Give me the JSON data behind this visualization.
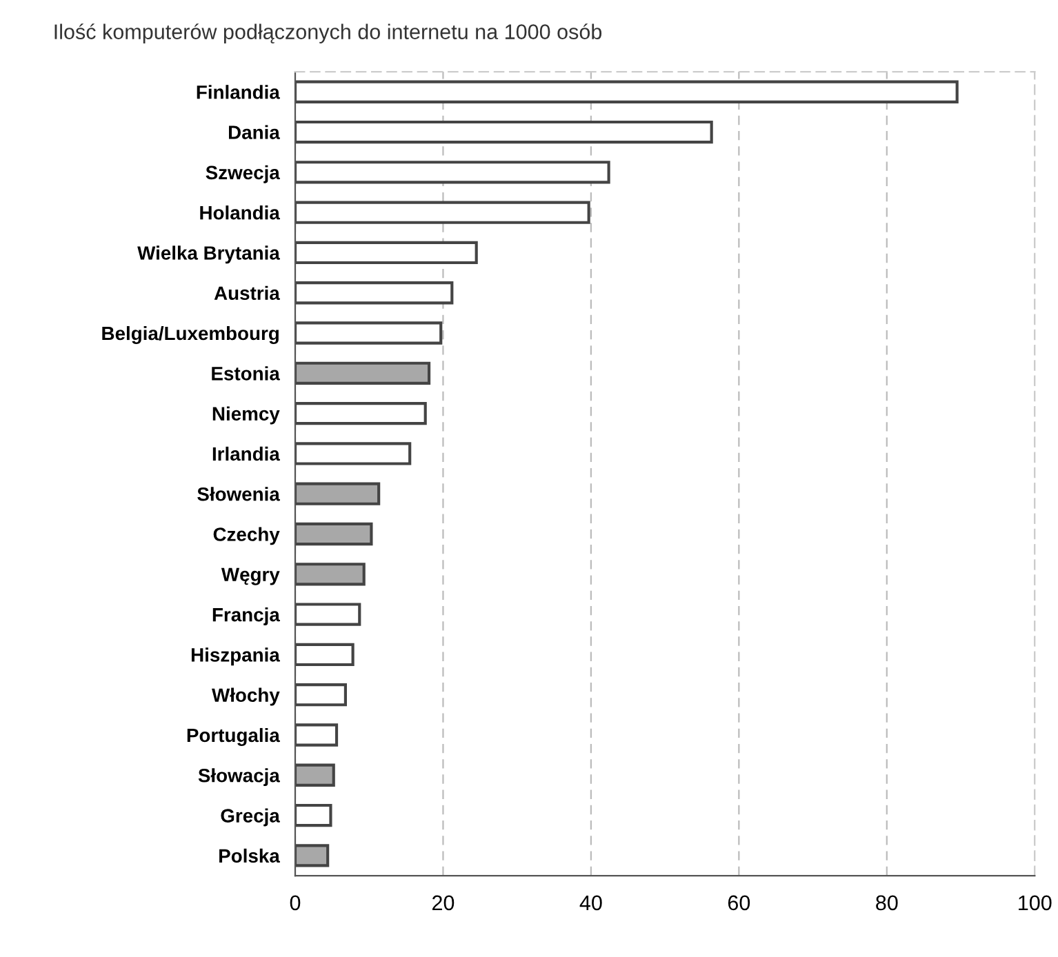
{
  "chart_data": {
    "type": "bar",
    "orientation": "horizontal",
    "title": "Ilość komputerów podłączonych do internetu na 1000 osób",
    "categories": [
      "Finlandia",
      "Dania",
      "Szwecja",
      "Holandia",
      "Wielka Brytania",
      "Austria",
      "Belgia/Luxembourg",
      "Estonia",
      "Niemcy",
      "Irlandia",
      "Słowenia",
      "Czechy",
      "Węgry",
      "Francja",
      "Hiszpania",
      "Włochy",
      "Portugalia",
      "Słowacja",
      "Grecja",
      "Polska"
    ],
    "values": [
      89.5,
      56.3,
      42.4,
      39.7,
      24.5,
      21.2,
      19.7,
      18.1,
      17.6,
      15.5,
      11.3,
      10.3,
      9.3,
      8.7,
      7.8,
      6.8,
      5.6,
      5.2,
      4.8,
      4.4
    ],
    "colors": [
      "#ffffff",
      "#ffffff",
      "#ffffff",
      "#ffffff",
      "#ffffff",
      "#ffffff",
      "#ffffff",
      "#a8a8a8",
      "#ffffff",
      "#ffffff",
      "#a8a8a8",
      "#a8a8a8",
      "#a8a8a8",
      "#ffffff",
      "#ffffff",
      "#ffffff",
      "#ffffff",
      "#a8a8a8",
      "#ffffff",
      "#a8a8a8"
    ],
    "xlim": [
      0,
      100
    ],
    "xticks": [
      0,
      20,
      40,
      60,
      80,
      100
    ],
    "grid": "x"
  }
}
